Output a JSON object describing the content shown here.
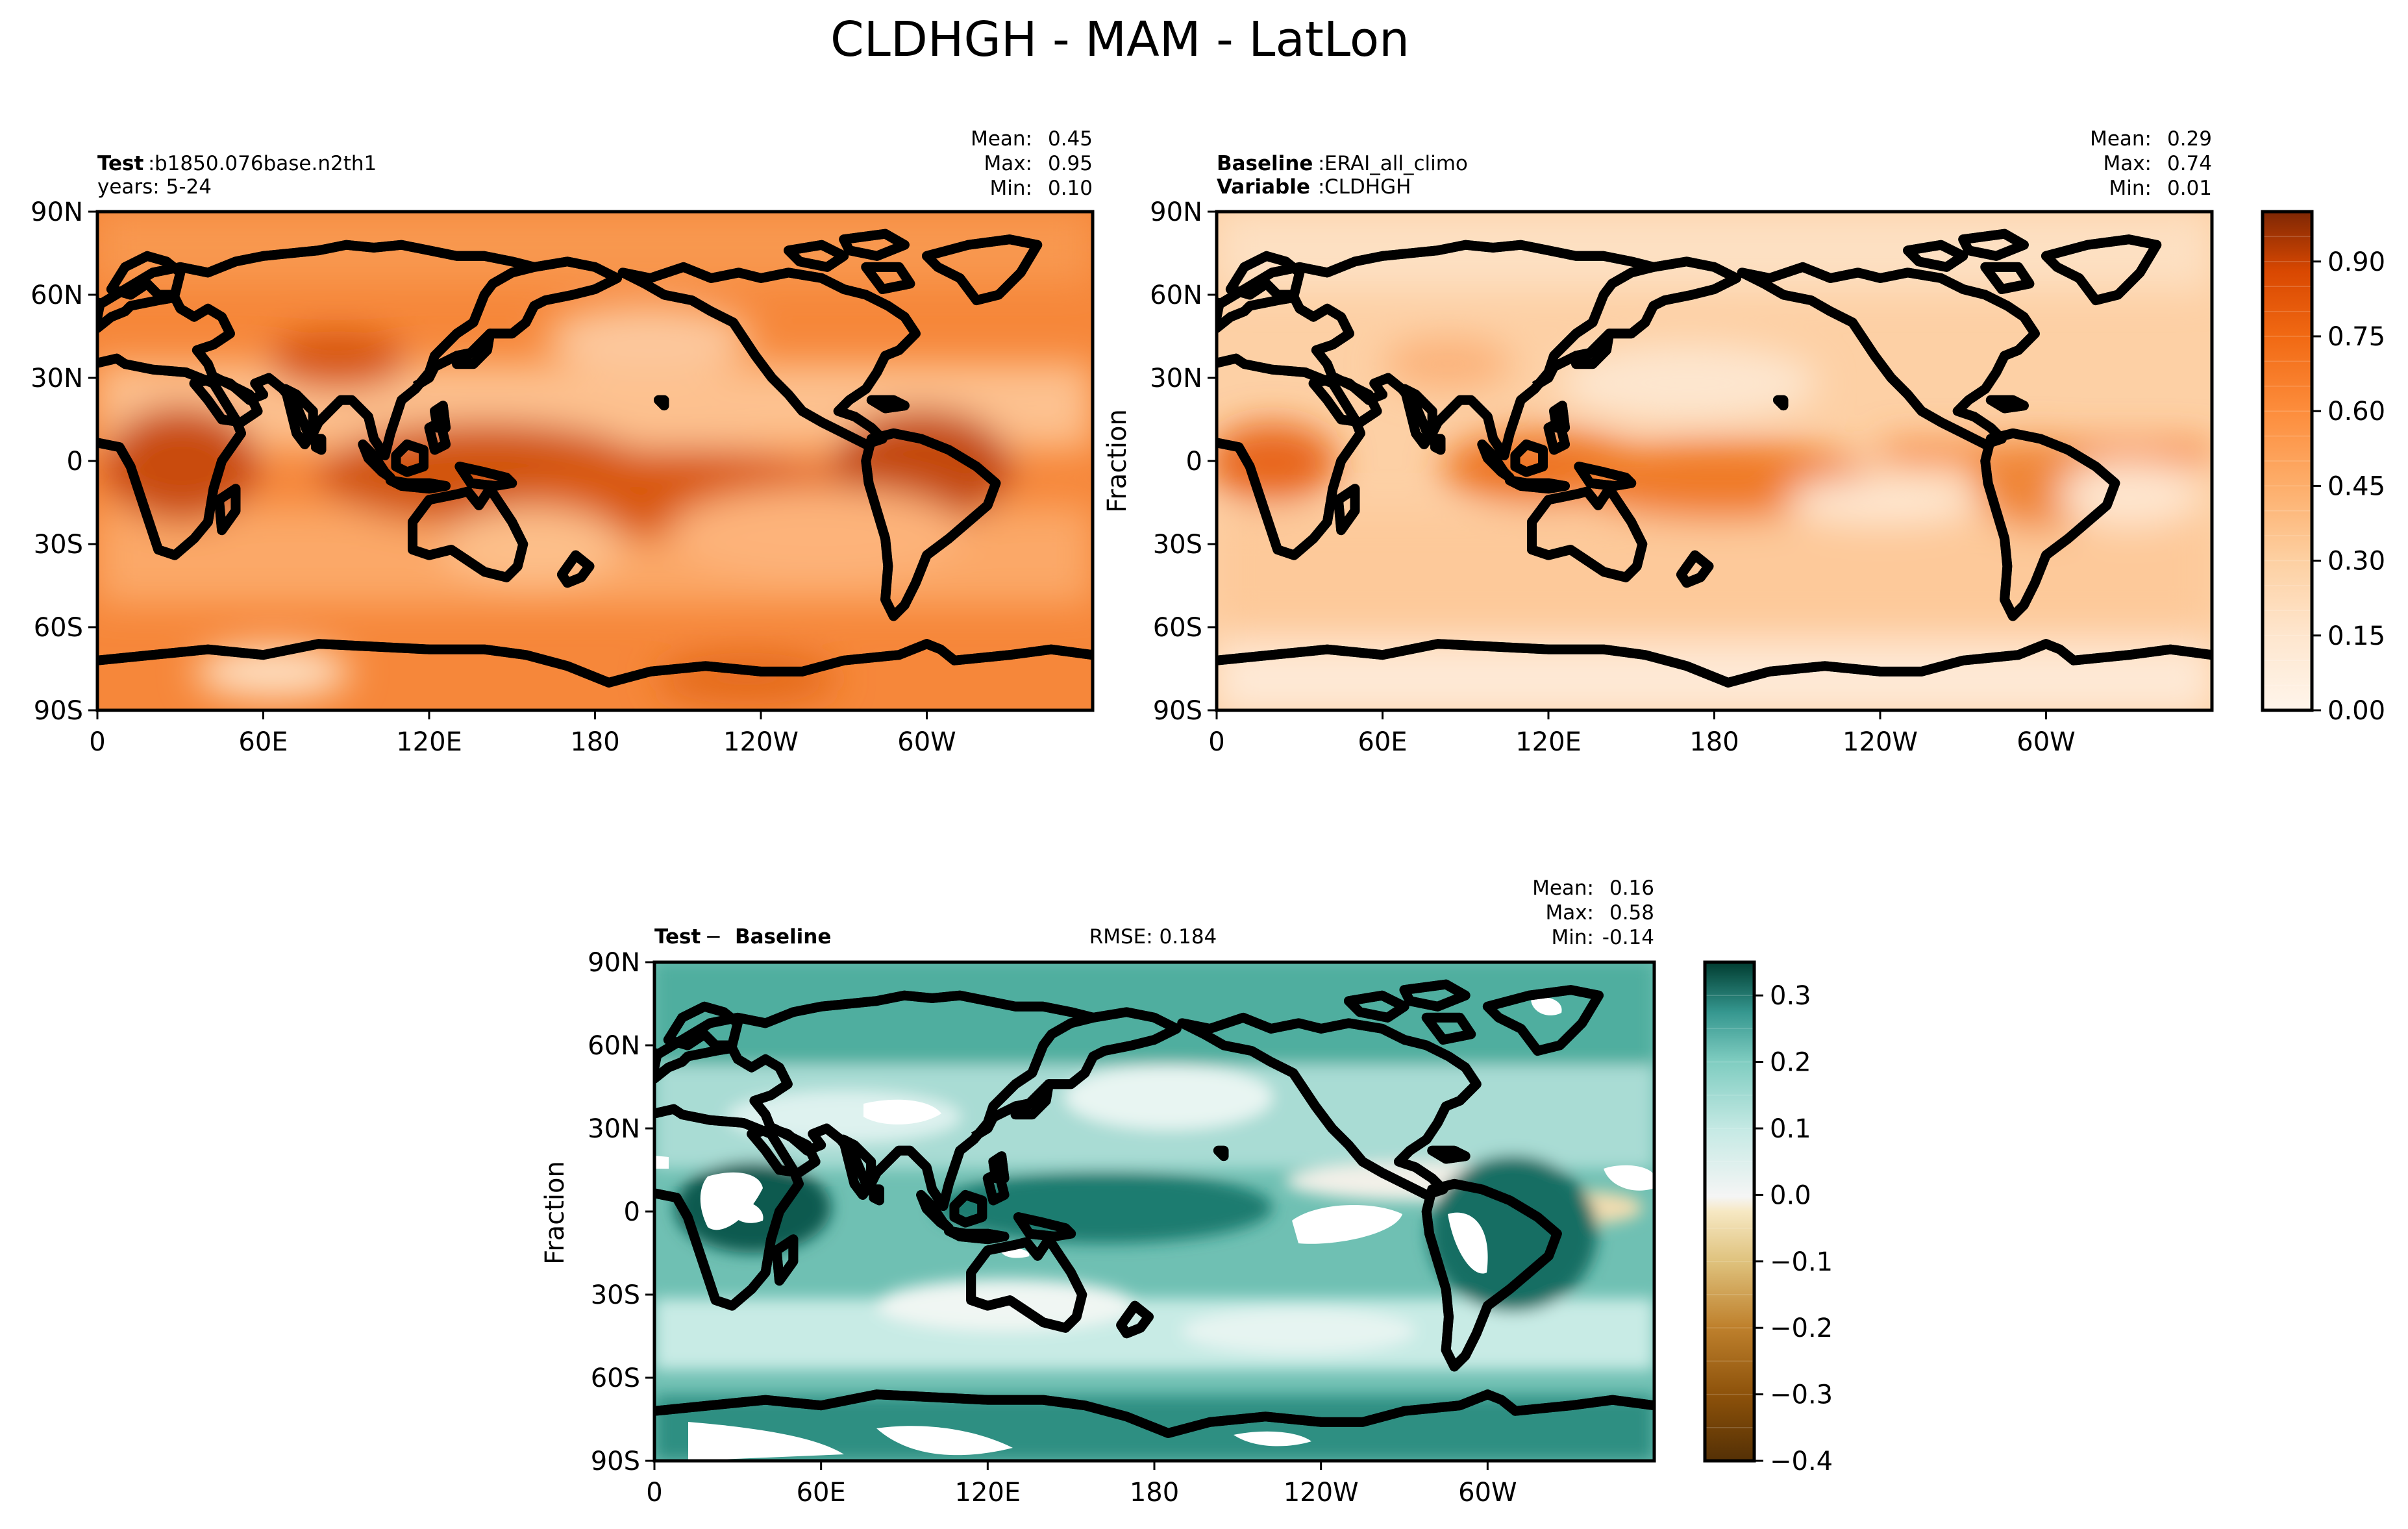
{
  "figure_title": "CLDHGH - MAM - LatLon",
  "chart_data": [
    {
      "type": "heatmap",
      "panel": "test",
      "label_bold": "Test",
      "label_value": "b1850.076base.n2th1",
      "subtitle": "years: 5-24",
      "stats": {
        "mean_label": "Mean:",
        "mean": "0.45",
        "max_label": "Max:",
        "max": "0.95",
        "min_label": "Min:",
        "min": "0.10"
      },
      "ylabel": "",
      "xticks": [
        "0",
        "60E",
        "120E",
        "180",
        "120W",
        "60W"
      ],
      "yticks": [
        "90N",
        "60N",
        "30N",
        "0",
        "30S",
        "60S",
        "90S"
      ],
      "xlim": [
        0,
        360
      ],
      "ylim": [
        -90,
        90
      ],
      "colormap": "Oranges"
    },
    {
      "type": "heatmap",
      "panel": "baseline",
      "label_bold": "Baseline",
      "label_value": "ERAI_all_climo",
      "label2_bold": "Variable",
      "label2_value": "CLDHGH",
      "stats": {
        "mean_label": "Mean:",
        "mean": "0.29",
        "max_label": "Max:",
        "max": "0.74",
        "min_label": "Min:",
        "min": "0.01"
      },
      "ylabel": "Fraction",
      "xticks": [
        "0",
        "60E",
        "120E",
        "180",
        "120W",
        "60W"
      ],
      "yticks": [
        "90N",
        "60N",
        "30N",
        "0",
        "30S",
        "60S",
        "90S"
      ],
      "xlim": [
        0,
        360
      ],
      "ylim": [
        -90,
        90
      ],
      "colormap": "Oranges",
      "colorbar": {
        "ticks": [
          "0.90",
          "0.75",
          "0.60",
          "0.45",
          "0.30",
          "0.15",
          "0.00"
        ],
        "tick_values": [
          0.9,
          0.75,
          0.6,
          0.45,
          0.3,
          0.15,
          0.0
        ],
        "range": [
          0,
          1.0
        ]
      }
    },
    {
      "type": "heatmap",
      "panel": "difference",
      "label_bold": "Test",
      "label_op": " − ",
      "label_bold2": "Baseline",
      "rmse": "RMSE: 0.184",
      "stats": {
        "mean_label": "Mean:",
        "mean": "0.16",
        "max_label": "Max:",
        "max": "0.58",
        "min_label": "Min:",
        "min": "-0.14"
      },
      "ylabel": "Fraction",
      "xticks": [
        "0",
        "60E",
        "120E",
        "180",
        "120W",
        "60W"
      ],
      "yticks": [
        "90N",
        "60N",
        "30N",
        "0",
        "30S",
        "60S",
        "90S"
      ],
      "xlim": [
        0,
        360
      ],
      "ylim": [
        -90,
        90
      ],
      "colormap": "BrBG",
      "colorbar": {
        "ticks": [
          "0.3",
          "0.2",
          "0.1",
          "0.0",
          "−0.1",
          "−0.2",
          "−0.3",
          "−0.4"
        ],
        "tick_values": [
          0.3,
          0.2,
          0.1,
          0.0,
          -0.1,
          -0.2,
          -0.3,
          -0.4
        ],
        "range": [
          -0.4,
          0.35
        ]
      }
    }
  ]
}
